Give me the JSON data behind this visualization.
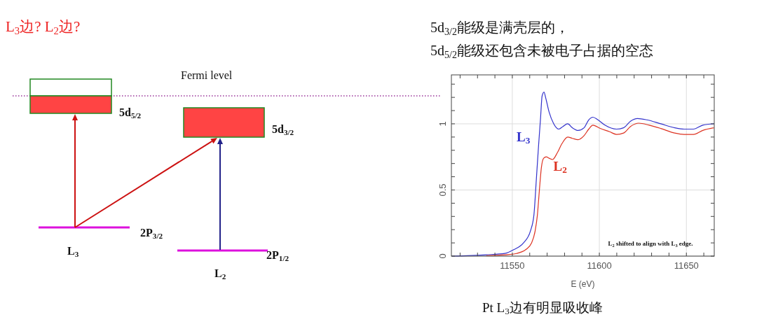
{
  "chart_data": [
    {
      "type": "other",
      "title": "L$_{3}$边? L$_{2}$边?",
      "annotations": [
        "Fermi level",
        "5d$_{5/2}$",
        "5d$_{3/2}$",
        "2P$_{3/2}$",
        "L$_{3}$",
        "2P$_{1/2}$",
        "L$_{2}$"
      ]
    },
    {
      "type": "line",
      "title": "5d$_{3/2}$能级是满壳层的，",
      "subtitle": "5d$_{5/2}$能级还包含未被电子占据的空态",
      "xlabel": "E (eV)",
      "xlim": [
        11515,
        11666
      ],
      "ylim": [
        0,
        1.37
      ],
      "xticks": [
        {
          "value": 11520,
          "label": null
        },
        {
          "value": 11530,
          "label": null
        },
        {
          "value": 11540,
          "label": null
        },
        11550,
        {
          "value": 11560,
          "label": null
        },
        {
          "value": 11570,
          "label": null
        },
        {
          "value": 11580,
          "label": null
        },
        {
          "value": 11590,
          "label": null
        },
        11600,
        {
          "value": 11610,
          "label": null
        },
        {
          "value": 11620,
          "label": null
        },
        {
          "value": 11630,
          "label": null
        },
        {
          "value": 11640,
          "label": null
        },
        11650,
        {
          "value": 11660,
          "label": null
        }
      ],
      "yticks": [
        0,
        {
          "value": 0.1,
          "label": null
        },
        {
          "value": 0.2,
          "label": null
        },
        {
          "value": 0.3,
          "label": null
        },
        {
          "value": 0.4,
          "label": null
        },
        0.5,
        {
          "value": 0.6,
          "label": null
        },
        {
          "value": 0.7,
          "label": null
        },
        {
          "value": 0.8,
          "label": null
        },
        {
          "value": 0.9,
          "label": null
        },
        1,
        {
          "value": 1.1,
          "label": null
        },
        {
          "value": 1.2,
          "label": null
        },
        {
          "value": 1.3,
          "label": null
        }
      ],
      "grid": true,
      "annotations": [
        "L$_{2}$ shifted to align with L$_{3}$ edge.",
        "Pt L$_{3}$边有明显吸收峰"
      ],
      "series": [
        {
          "name": "L$_{3}$",
          "color": "#3333cc",
          "x": [
            11515.4,
            11535,
            11545.7,
            11551,
            11556.4,
            11560.4,
            11562.4,
            11563.8,
            11565.1,
            11566.2,
            11567.1,
            11568.2,
            11569.1,
            11571.1,
            11573.8,
            11576.7,
            11579.1,
            11581.8,
            11584.5,
            11587.8,
            11591.2,
            11593.9,
            11596.3,
            11599.2,
            11603.2,
            11609.9,
            11613.9,
            11617.9,
            11621.9,
            11627.3,
            11635.3,
            11643.3,
            11648.7,
            11654,
            11659.4,
            11665.8
          ],
          "values": [
            0,
            0.01,
            0.02,
            0.05,
            0.1,
            0.19,
            0.31,
            0.58,
            0.84,
            1.04,
            1.21,
            1.24,
            1.2,
            1.09,
            1,
            0.96,
            0.98,
            1,
            0.97,
            0.95,
            0.97,
            1.03,
            1.05,
            1.03,
            0.99,
            0.96,
            0.97,
            1.02,
            1.04,
            1.03,
            1,
            0.97,
            0.96,
            0.96,
            0.99,
            1
          ]
        },
        {
          "name": "L$_{2}$",
          "color": "#dd3322",
          "x": [
            11535,
            11545.7,
            11552.4,
            11557.8,
            11561.1,
            11563.1,
            11564.4,
            11565.5,
            11566.7,
            11568,
            11569.5,
            11571.1,
            11573.1,
            11575.8,
            11578.5,
            11581.8,
            11584.5,
            11587.8,
            11591.2,
            11593.9,
            11596.3,
            11600.5,
            11605.9,
            11609.9,
            11613.9,
            11617.9,
            11622.6,
            11628.6,
            11635.3,
            11643.3,
            11648.7,
            11654,
            11659.4,
            11665.8
          ],
          "values": [
            0.004,
            0.01,
            0.02,
            0.05,
            0.1,
            0.19,
            0.31,
            0.49,
            0.67,
            0.74,
            0.75,
            0.74,
            0.73,
            0.78,
            0.85,
            0.9,
            0.89,
            0.88,
            0.91,
            0.96,
            0.99,
            0.965,
            0.94,
            0.92,
            0.93,
            0.98,
            1.005,
            0.99,
            0.965,
            0.93,
            0.92,
            0.92,
            0.95,
            0.97
          ]
        }
      ]
    }
  ]
}
